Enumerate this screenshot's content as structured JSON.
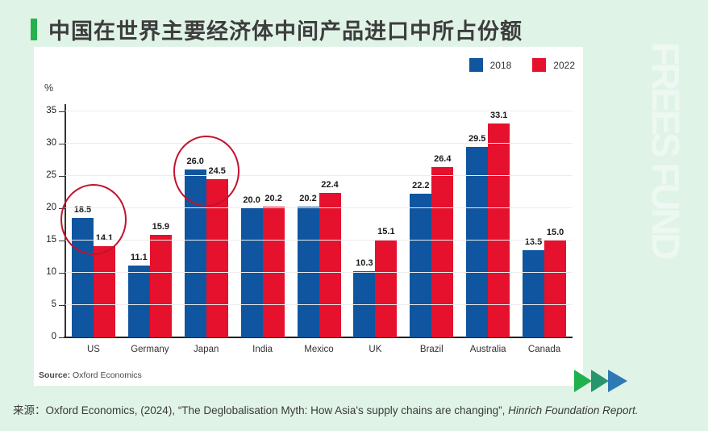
{
  "page": {
    "title": "中国在世界主要经济体中间产品进口中所占份额",
    "watermark": "FREES FUND",
    "footer": {
      "prefix": "来源：",
      "citation": "Oxford Economics, (2024), “The Deglobalisation Myth: How Asia's supply chains are changing”, ",
      "citation_italic": "Hinrich Foundation Report."
    }
  },
  "chart_data": {
    "type": "bar",
    "title": "",
    "unit_label": "%",
    "categories": [
      "US",
      "Germany",
      "Japan",
      "India",
      "Mexico",
      "UK",
      "Brazil",
      "Australia",
      "Canada"
    ],
    "series": [
      {
        "name": "2018",
        "color": "#10559f",
        "values": [
          18.5,
          11.1,
          26.0,
          20.0,
          20.2,
          10.3,
          22.2,
          29.5,
          13.5
        ]
      },
      {
        "name": "2022",
        "color": "#e5112d",
        "values": [
          14.1,
          15.9,
          24.5,
          20.2,
          22.4,
          15.1,
          26.4,
          33.1,
          15.0
        ]
      }
    ],
    "ylim": [
      0,
      35
    ],
    "ytick_step": 5,
    "grid": true,
    "legend_position": "top-right",
    "source_label": "Source:",
    "source_text": "Oxford Economics",
    "annotations": [
      {
        "type": "circle",
        "category": "US"
      },
      {
        "type": "circle",
        "category": "Japan"
      }
    ]
  },
  "colors": {
    "background": "#e0f3e7",
    "accent_green": "#27b14e",
    "bar_2018": "#10559f",
    "bar_2022": "#e5112d",
    "circle_annotation": "#c1122f",
    "arrow_green": "#1fb14e",
    "arrow_teal": "#27966e",
    "arrow_blue": "#2f7ab5",
    "watermark": "#ecf8f1"
  }
}
